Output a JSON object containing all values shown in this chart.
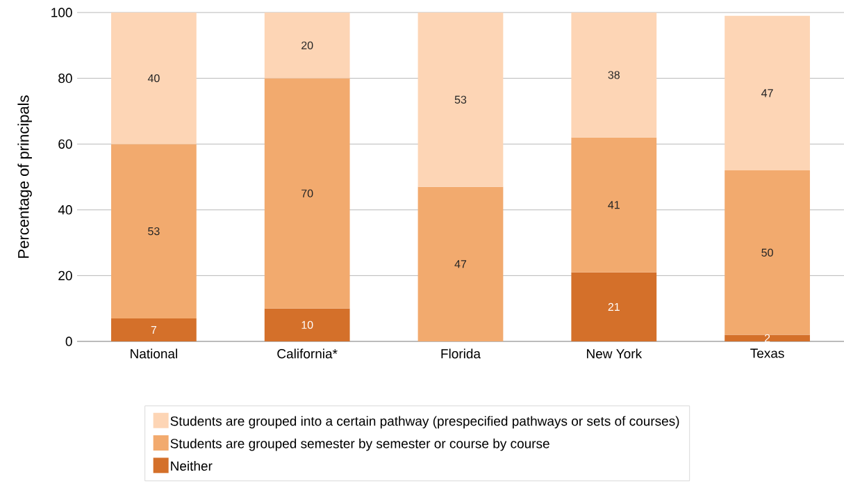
{
  "chart_data": {
    "type": "bar",
    "stacked": true,
    "ylabel": "Percentage of principals",
    "categories": [
      "National",
      "California*",
      "Florida",
      "New York",
      "Texas"
    ],
    "series": [
      {
        "name": "Neither",
        "color": "#d4702a",
        "values": [
          7,
          10,
          null,
          21,
          2
        ]
      },
      {
        "name": "Students are grouped semester by semester or course by course",
        "color": "#f2aa6e",
        "values": [
          53,
          70,
          47,
          41,
          50
        ]
      },
      {
        "name": "Students are grouped into a certain pathway (prespecified pathways or sets of courses)",
        "color": "#fdd5b5",
        "values": [
          40,
          20,
          53,
          38,
          47
        ]
      }
    ],
    "ylim": [
      0,
      100
    ],
    "yticks": [
      0,
      20,
      40,
      60,
      80,
      100
    ],
    "grid": "y",
    "legend": "bottom",
    "data_labels": true
  }
}
